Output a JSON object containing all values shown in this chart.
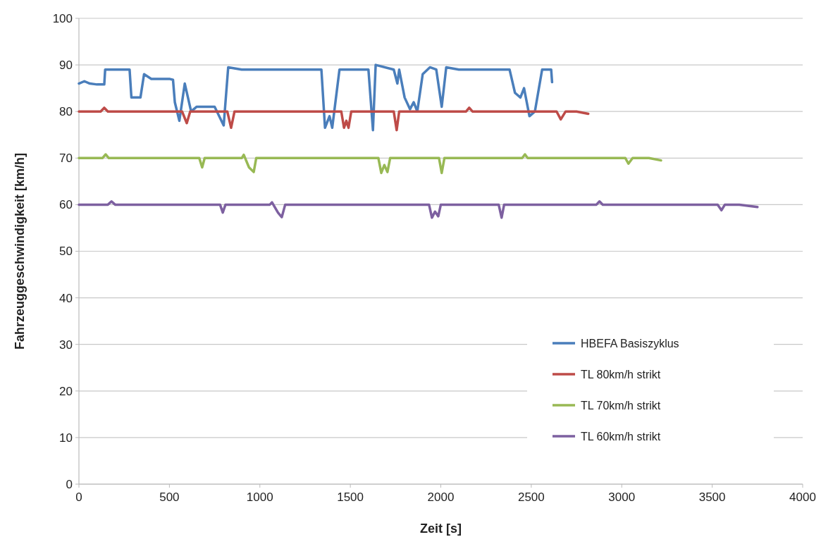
{
  "chart_data": {
    "type": "line",
    "xlabel": "Zeit [s]",
    "ylabel": "Fahrzeuggeschwindigkeit [km/h]",
    "xlim": [
      0,
      4000
    ],
    "xticks": [
      0,
      500,
      1000,
      1500,
      2000,
      2500,
      3000,
      3500,
      4000
    ],
    "ylim": [
      0,
      100
    ],
    "yticks": [
      0,
      10,
      20,
      30,
      40,
      50,
      60,
      70,
      80,
      90,
      100
    ],
    "grid": "y",
    "legend": "bottom right",
    "line_style": "solid",
    "marker": "none",
    "series": [
      {
        "name": "HBEFA Basiszyklus",
        "color": "#4a7ebb",
        "x": [
          0,
          30,
          60,
          100,
          140,
          145,
          200,
          280,
          290,
          340,
          360,
          400,
          500,
          520,
          530,
          555,
          585,
          620,
          650,
          750,
          800,
          825,
          900,
          1000,
          1100,
          1340,
          1360,
          1385,
          1400,
          1440,
          1500,
          1600,
          1625,
          1640,
          1740,
          1760,
          1770,
          1800,
          1830,
          1850,
          1870,
          1900,
          1940,
          1975,
          2005,
          2030,
          2100,
          2380,
          2410,
          2440,
          2460,
          2490,
          2520,
          2560,
          2610,
          2615
        ],
        "values": [
          86,
          86.5,
          86,
          85.8,
          85.8,
          89,
          89,
          89,
          83,
          83,
          88,
          87,
          87,
          86.8,
          82,
          78,
          86,
          80,
          81,
          81,
          77,
          89.5,
          89,
          89,
          89,
          89,
          76.5,
          79,
          76.5,
          89,
          89,
          89,
          76,
          90,
          89,
          86,
          89,
          83,
          80.5,
          82,
          80,
          88,
          89.5,
          89,
          81,
          89.5,
          89,
          89,
          84,
          83,
          85,
          79,
          80,
          89,
          89,
          86.3
        ]
      },
      {
        "name": "TL 80km/h strikt",
        "color": "#be4b48",
        "x": [
          0,
          120,
          140,
          160,
          570,
          596,
          615,
          820,
          841,
          860,
          1450,
          1465,
          1478,
          1490,
          1505,
          1740,
          1756,
          1770,
          2140,
          2157,
          2175,
          2640,
          2663,
          2690,
          2750,
          2815
        ],
        "values": [
          80,
          80,
          80.8,
          80,
          80,
          77.5,
          80,
          80,
          76.5,
          80,
          80,
          76.5,
          78,
          76.5,
          80,
          80,
          76,
          80,
          80,
          80.8,
          80,
          80,
          78.3,
          80,
          80,
          79.5
        ]
      },
      {
        "name": "TL 70km/h strikt",
        "color": "#98b954",
        "x": [
          0,
          130,
          148,
          165,
          665,
          681,
          695,
          900,
          911,
          940,
          966,
          980,
          1655,
          1671,
          1688,
          1705,
          1720,
          1990,
          2005,
          2020,
          2450,
          2465,
          2480,
          3020,
          3037,
          3060,
          3150,
          3217
        ],
        "values": [
          70,
          70,
          70.8,
          70,
          70,
          68,
          70,
          70,
          70.7,
          68,
          67,
          70,
          70,
          66.8,
          68.5,
          67,
          70,
          70,
          66.8,
          70,
          70,
          70.8,
          70,
          70,
          68.8,
          70,
          70,
          69.5
        ]
      },
      {
        "name": "TL 60km/h strikt",
        "color": "#7d60a0",
        "x": [
          0,
          160,
          180,
          200,
          780,
          795,
          810,
          1055,
          1067,
          1100,
          1121,
          1140,
          1935,
          1951,
          1968,
          1986,
          2000,
          2320,
          2336,
          2350,
          2860,
          2877,
          2895,
          3530,
          3551,
          3570,
          3650,
          3750
        ],
        "values": [
          60,
          60,
          60.7,
          60,
          60,
          58.3,
          60,
          60,
          60.5,
          58.3,
          57.3,
          60,
          60,
          57.2,
          58.5,
          57.5,
          60,
          60,
          57.2,
          60,
          60,
          60.7,
          60,
          60,
          58.8,
          60,
          60,
          59.5
        ]
      }
    ]
  }
}
